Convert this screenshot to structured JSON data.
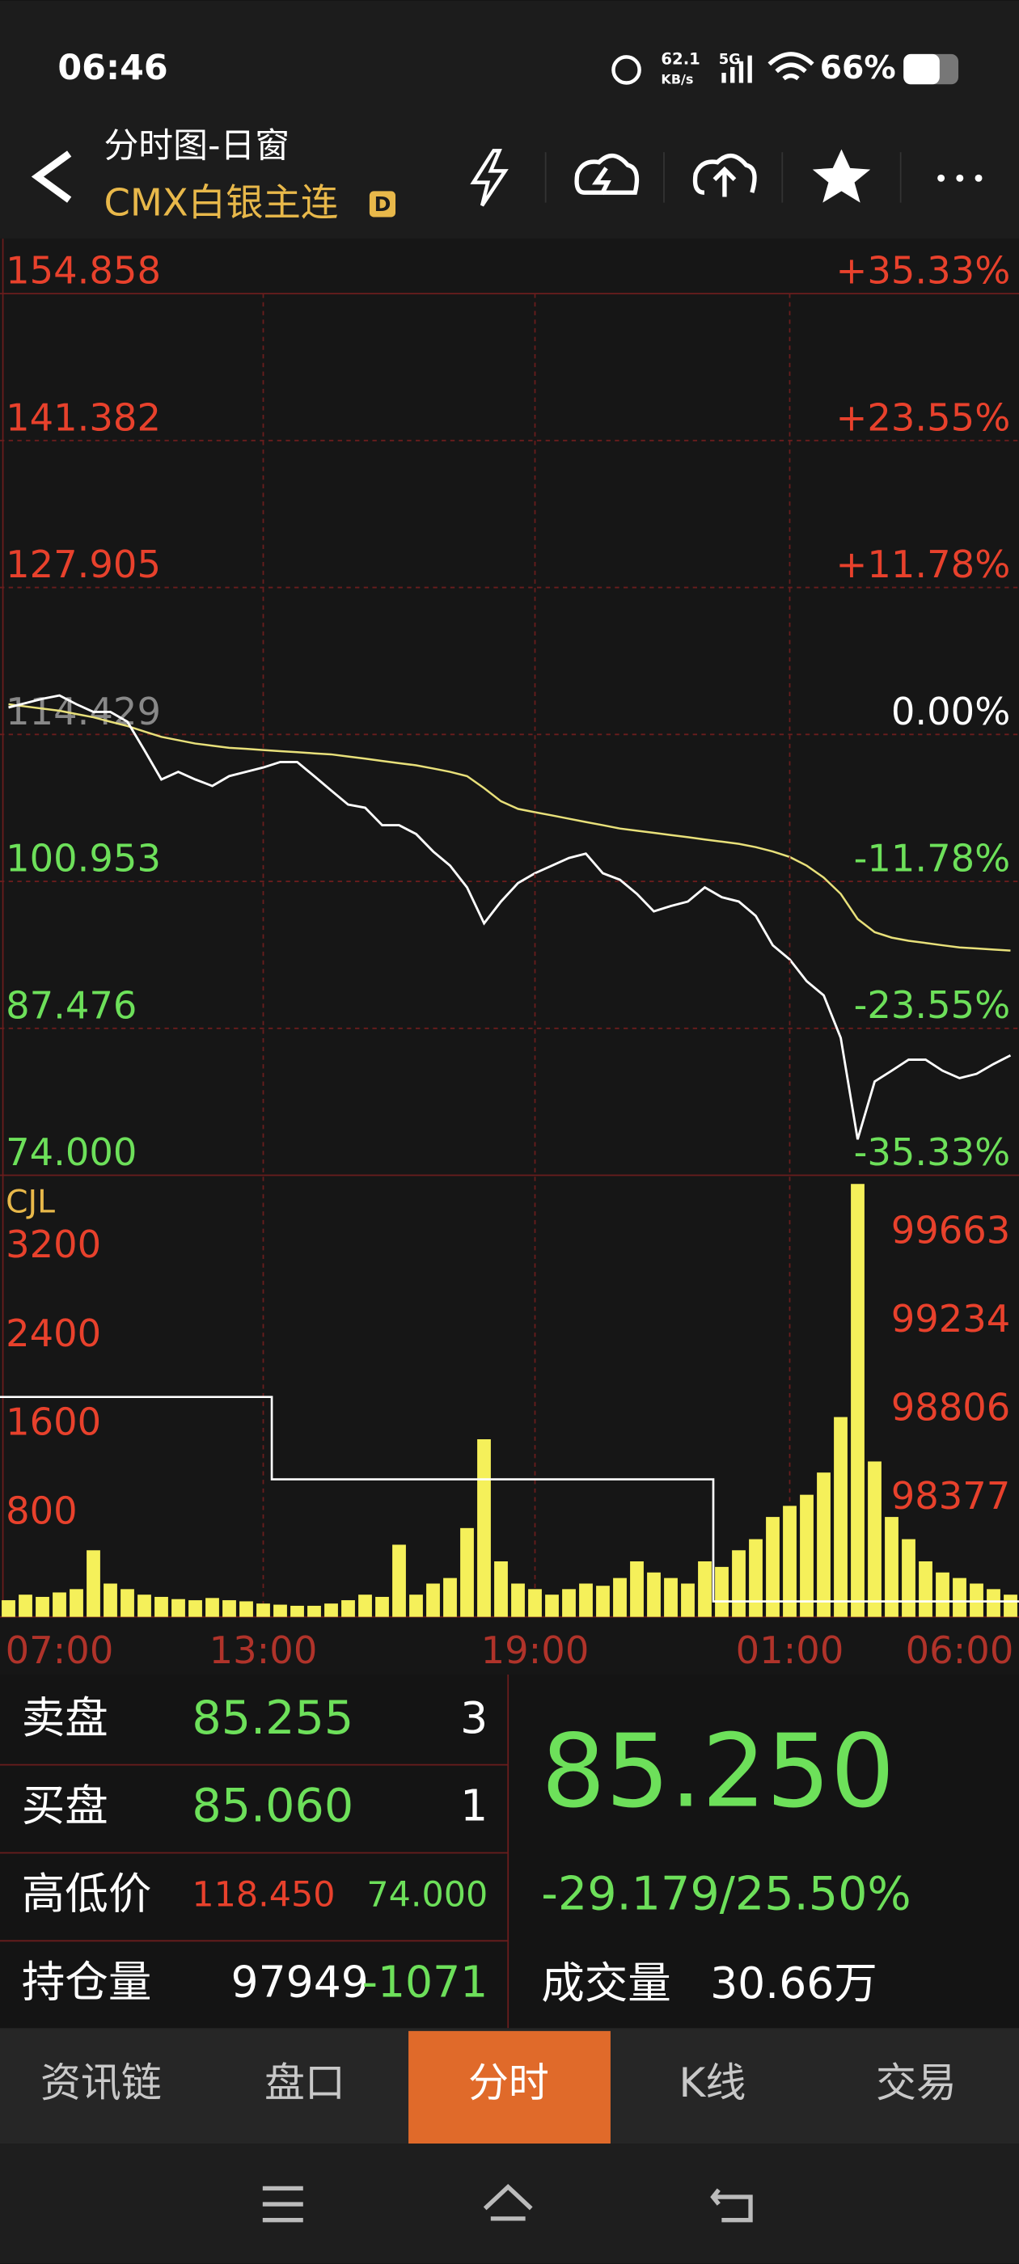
{
  "status_bar": {
    "time": "06:46",
    "net_speed": "62.1",
    "net_unit": "KB/s",
    "signal": "5G",
    "battery": "66%"
  },
  "header": {
    "title": "分时图-日窗",
    "instrument": "CMX白银主连",
    "badge": "D"
  },
  "chart_data": [
    {
      "type": "line",
      "series": [
        {
          "color": "#ffffff",
          "values": [
            116.9,
            117.3,
            117.7,
            118.0,
            117.2,
            116.5,
            116.5,
            115.6,
            113.0,
            110.3,
            111.0,
            110.3,
            109.7,
            110.6,
            111.0,
            111.4,
            111.9,
            111.9,
            110.6,
            109.3,
            108.0,
            107.7,
            106.1,
            106.1,
            105.3,
            103.7,
            102.4,
            100.4,
            97.1,
            99.1,
            100.8,
            101.7,
            102.4,
            103.1,
            103.5,
            101.7,
            101.1,
            99.8,
            98.2,
            98.7,
            99.1,
            100.4,
            99.5,
            99.1,
            97.8,
            95.1,
            93.8,
            91.8,
            90.5,
            86.6,
            77.3,
            82.6,
            83.6,
            84.6,
            84.6,
            83.6,
            82.9,
            83.3,
            84.2,
            85.0
          ]
        },
        {
          "color": "#e8e07a",
          "values": [
            117.2,
            117.0,
            116.8,
            116.6,
            116.3,
            116.0,
            115.6,
            115.2,
            114.7,
            114.2,
            113.9,
            113.6,
            113.4,
            113.2,
            113.1,
            113.0,
            112.9,
            112.8,
            112.7,
            112.6,
            112.4,
            112.2,
            112.0,
            111.8,
            111.6,
            111.3,
            111.0,
            110.6,
            109.5,
            108.3,
            107.6,
            107.3,
            107.0,
            106.7,
            106.4,
            106.1,
            105.8,
            105.6,
            105.4,
            105.2,
            105.0,
            104.8,
            104.6,
            104.4,
            104.1,
            103.7,
            103.2,
            102.4,
            101.3,
            99.8,
            97.5,
            96.3,
            95.8,
            95.5,
            95.3,
            95.1,
            94.9,
            94.8,
            94.7,
            94.6
          ]
        }
      ],
      "ylim": [
        74,
        154.858
      ],
      "yticks": [
        154.858,
        141.382,
        127.905,
        114.429,
        100.953,
        87.476,
        {
          "value": 74,
          "label": "74.000"
        }
      ],
      "y2lim": [
        -35.33,
        35.33
      ],
      "y2ticks": [
        {
          "value": 35.33,
          "label": "+35.33%"
        },
        {
          "value": 23.55,
          "label": "+23.55%"
        },
        {
          "value": 11.78,
          "label": "+11.78%"
        },
        {
          "value": 0,
          "label": "0.00%"
        },
        {
          "value": -11.78,
          "label": "-11.78%"
        },
        {
          "value": -23.55,
          "label": "-23.55%"
        },
        {
          "value": -35.33,
          "label": "-35.33%"
        }
      ],
      "grid": true
    },
    {
      "type": "bar",
      "title": "CJL",
      "categories": [
        null,
        null,
        null,
        "07:00",
        null,
        null,
        null,
        null,
        null,
        null,
        null,
        null,
        null,
        null,
        null,
        "13:00",
        null,
        null,
        null,
        null,
        null,
        null,
        null,
        null,
        null,
        null,
        null,
        null,
        null,
        null,
        null,
        "19:00",
        null,
        null,
        null,
        null,
        null,
        null,
        null,
        null,
        null,
        null,
        null,
        null,
        null,
        null,
        "01:00",
        null,
        null,
        null,
        null,
        null,
        null,
        null,
        null,
        null,
        "06:00",
        null,
        null,
        null
      ],
      "series": [
        {
          "color": "#f5f05a",
          "values": [
            150,
            200,
            180,
            220,
            250,
            600,
            300,
            250,
            200,
            180,
            160,
            150,
            170,
            150,
            140,
            120,
            110,
            100,
            100,
            120,
            150,
            200,
            180,
            650,
            200,
            300,
            350,
            800,
            1600,
            500,
            300,
            250,
            200,
            250,
            300,
            280,
            350,
            500,
            400,
            350,
            300,
            500,
            450,
            600,
            700,
            900,
            1000,
            1100,
            1300,
            1800,
            3900,
            1400,
            900,
            700,
            500,
            400,
            350,
            300,
            250,
            200
          ]
        },
        {
          "type": "line",
          "axis": "y2",
          "color": "#ffffff",
          "values": [
            98939,
            98939,
            98939,
            98939,
            98939,
            98939,
            98939,
            98939,
            98939,
            98939,
            98939,
            98939,
            98939,
            98939,
            98939,
            98939,
            98540,
            98540,
            98540,
            98540,
            98540,
            98540,
            98540,
            98540,
            98540,
            98540,
            98540,
            98540,
            98540,
            98540,
            98540,
            98540,
            98540,
            98540,
            98540,
            98540,
            98540,
            98540,
            98540,
            98540,
            98540,
            98540,
            97949,
            97949,
            97949,
            97949,
            97949,
            97949,
            97949,
            97949,
            97949,
            97949,
            97949,
            97949,
            97949,
            97949,
            97949,
            97949,
            97949,
            97949
          ]
        }
      ],
      "ylim": [
        0,
        3900
      ],
      "yticks": [
        800,
        1600,
        2400,
        3200
      ],
      "y2lim": [
        97874,
        99971
      ],
      "y2ticks": [
        98377,
        98806,
        99234,
        99663
      ]
    }
  ],
  "quote": {
    "rows": [
      [
        "卖盘",
        "85.255",
        "3"
      ],
      [
        "买盘",
        "85.060",
        "1"
      ],
      [
        "高低价",
        "118.450",
        "74.000"
      ],
      [
        "持仓量",
        "97949",
        "-1071"
      ]
    ],
    "last_price": "85.250",
    "change": "-29.179/25.50%",
    "volume_label": "成交量",
    "volume": "30.66万"
  },
  "tabs": [
    "资讯链",
    "盘口",
    "分时",
    "K线",
    "交易"
  ]
}
